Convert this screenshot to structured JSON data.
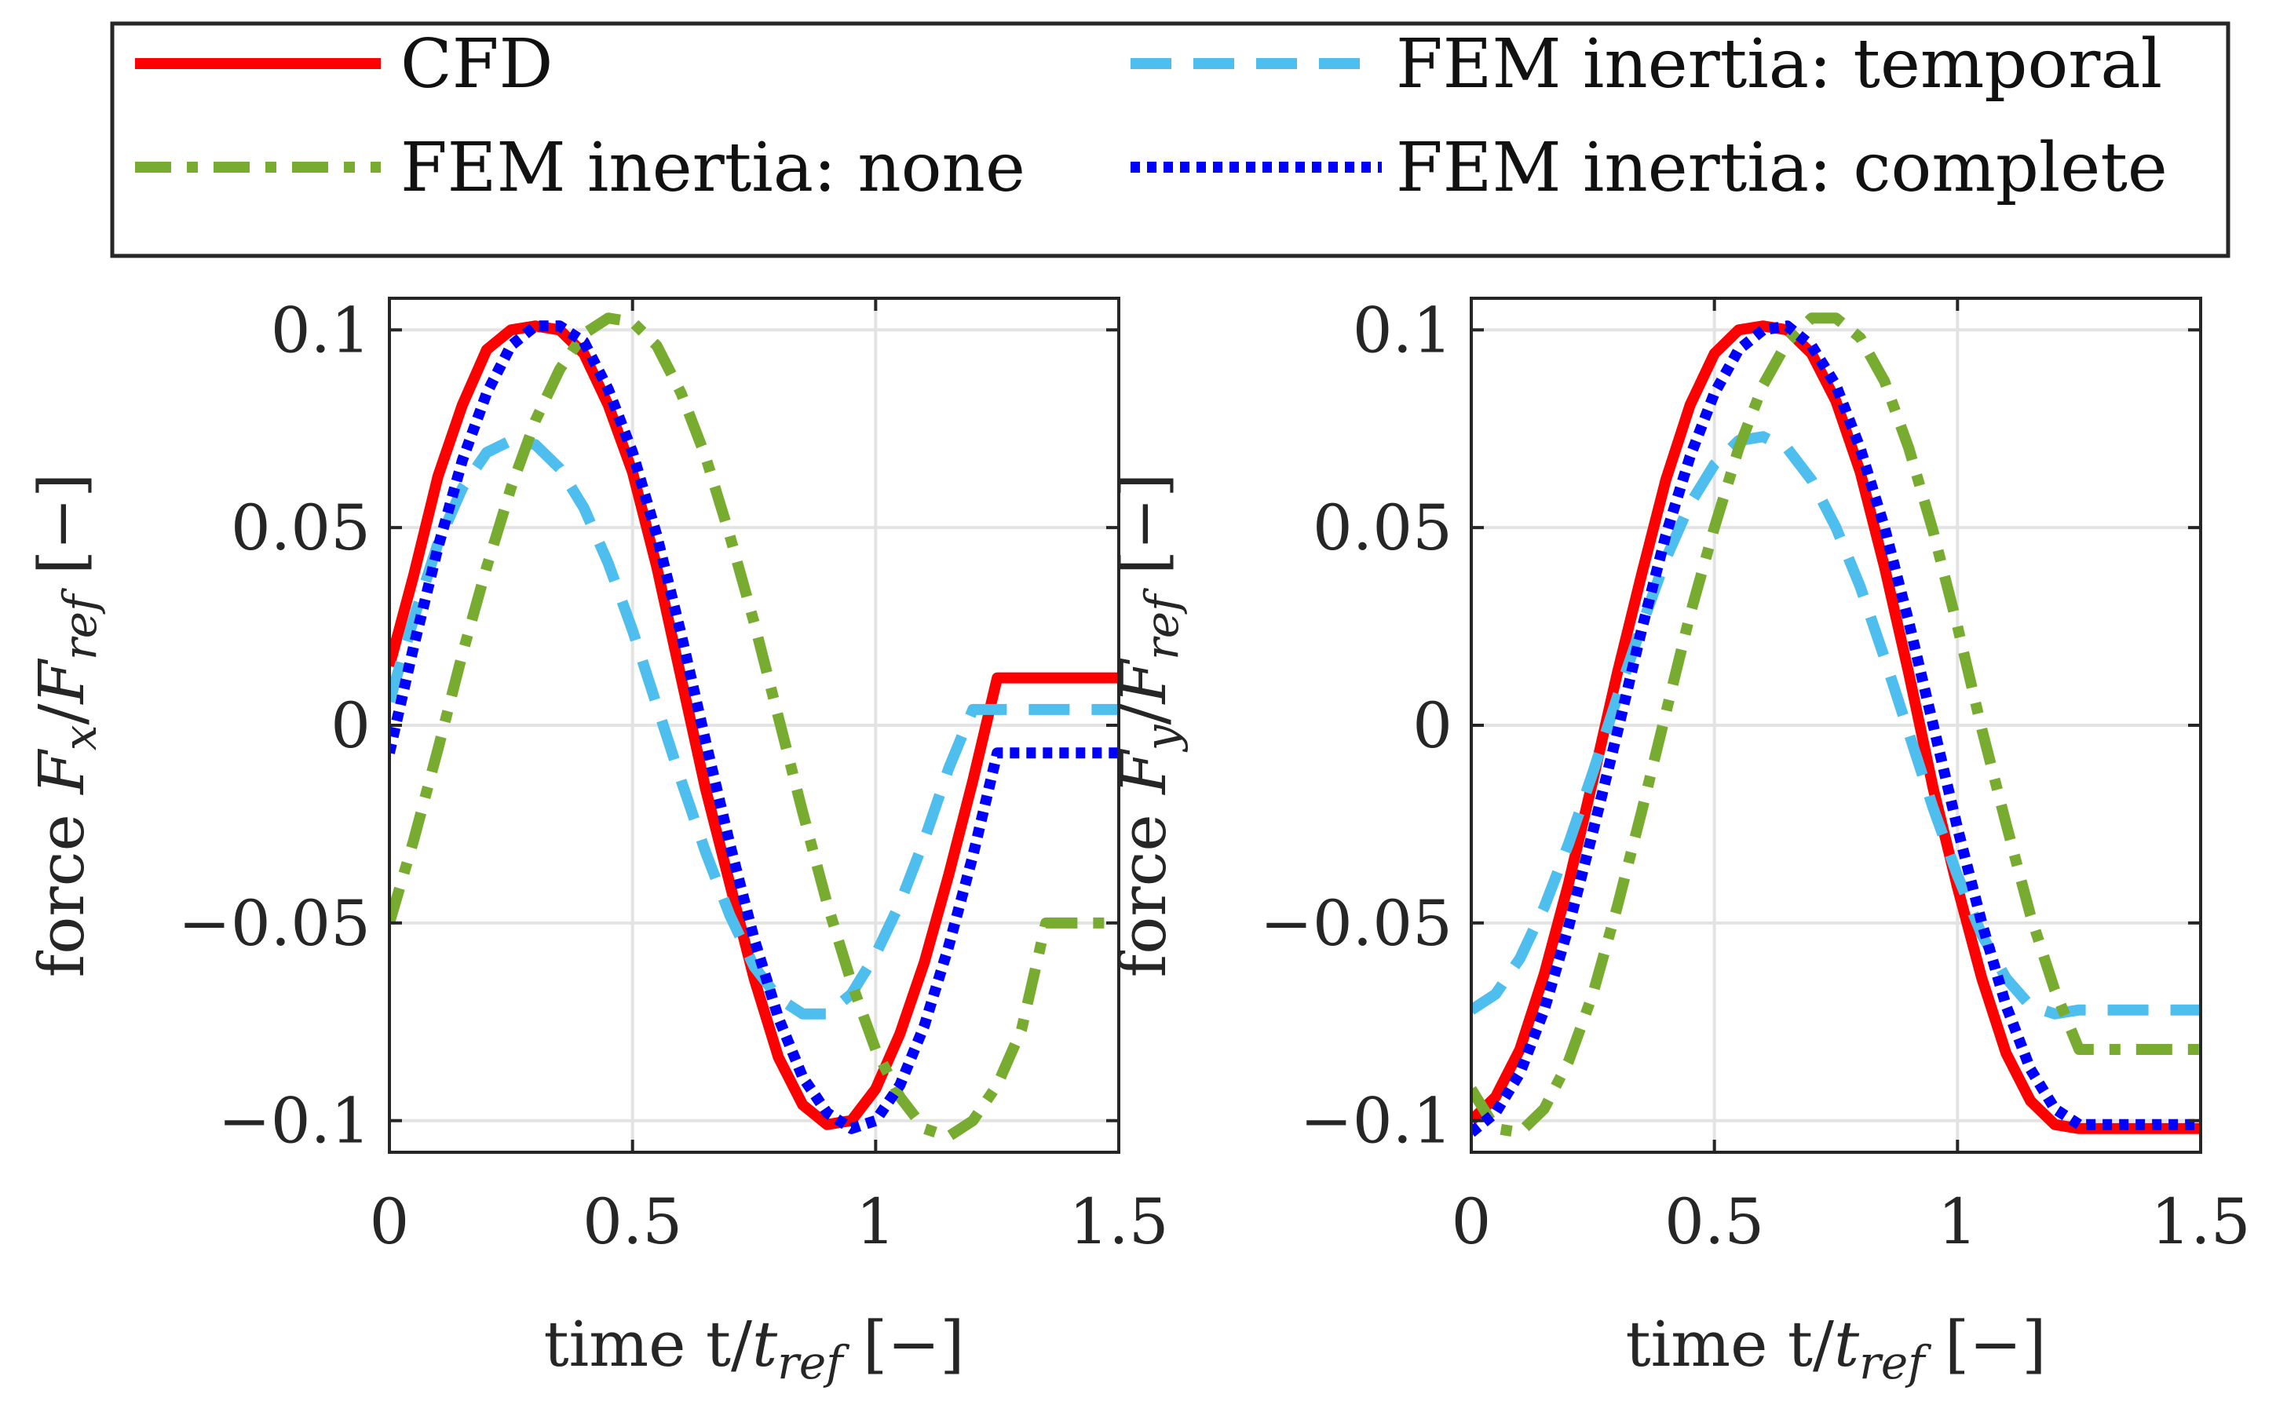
{
  "colors": {
    "CFD": "#ff0000",
    "FEM inertia: none": "#77ac30",
    "FEM inertia: temporal": "#4dbeee",
    "FEM inertia: complete": "#0000ff",
    "axis": "#262626",
    "grid": "#e3e3e3"
  },
  "legend": {
    "placement": "top, 2 columns",
    "entries": [
      {
        "label": "CFD",
        "style": "solid"
      },
      {
        "label": "FEM inertia: temporal",
        "style": "dashed"
      },
      {
        "label": "FEM inertia: none",
        "style": "dash-dot"
      },
      {
        "label": "FEM inertia: complete",
        "style": "dotted"
      }
    ]
  },
  "chart_data": [
    {
      "type": "line",
      "xlabel": "time t/t_ref [−]",
      "ylabel": "force F_x/F_ref [−]",
      "xlim": [
        0,
        1.5
      ],
      "ylim": [
        -0.108,
        0.108
      ],
      "xticks": [
        0,
        0.5,
        1,
        1.5
      ],
      "xtick_labels": [
        "0",
        "0.5",
        "1",
        "1.5"
      ],
      "yticks": [
        -0.1,
        -0.05,
        0,
        0.05,
        0.1
      ],
      "ytick_labels": [
        "−0.1",
        "−0.05",
        "0",
        "0.05",
        "0.1"
      ],
      "grid": true,
      "series": [
        {
          "name": "CFD",
          "style": "solid",
          "x": [
            0,
            0.05,
            0.1,
            0.15,
            0.2,
            0.25,
            0.3,
            0.35,
            0.4,
            0.45,
            0.5,
            0.55,
            0.6,
            0.65,
            0.7,
            0.75,
            0.8,
            0.85,
            0.9,
            0.95,
            1.0,
            1.05,
            1.1,
            1.15,
            1.2,
            1.25,
            1.3,
            1.35,
            1.4,
            1.45,
            1.5
          ],
          "y": [
            0.015,
            0.038,
            0.063,
            0.081,
            0.095,
            0.1,
            0.101,
            0.1,
            0.094,
            0.081,
            0.064,
            0.04,
            0.012,
            -0.016,
            -0.04,
            -0.064,
            -0.084,
            -0.096,
            -0.101,
            -0.1,
            -0.092,
            -0.078,
            -0.06,
            -0.038,
            -0.014,
            0.012,
            0.012,
            0.012,
            0.012,
            0.012,
            0.012
          ]
        },
        {
          "name": "FEM inertia: temporal",
          "style": "dashed",
          "x": [
            0,
            0.05,
            0.1,
            0.15,
            0.2,
            0.25,
            0.3,
            0.35,
            0.4,
            0.45,
            0.5,
            0.55,
            0.6,
            0.65,
            0.7,
            0.75,
            0.8,
            0.85,
            0.9,
            0.95,
            1.0,
            1.05,
            1.1,
            1.15,
            1.2,
            1.25,
            1.3,
            1.35,
            1.4,
            1.45,
            1.5
          ],
          "y": [
            0.006,
            0.027,
            0.046,
            0.06,
            0.069,
            0.072,
            0.071,
            0.065,
            0.055,
            0.041,
            0.024,
            0.005,
            -0.014,
            -0.032,
            -0.048,
            -0.061,
            -0.069,
            -0.073,
            -0.073,
            -0.068,
            -0.058,
            -0.045,
            -0.029,
            -0.011,
            0.004,
            0.004,
            0.004,
            0.004,
            0.004,
            0.004,
            0.004
          ]
        },
        {
          "name": "FEM inertia: none",
          "style": "dash-dot",
          "x": [
            0,
            0.05,
            0.1,
            0.15,
            0.2,
            0.25,
            0.3,
            0.35,
            0.4,
            0.45,
            0.5,
            0.55,
            0.6,
            0.65,
            0.7,
            0.75,
            0.8,
            0.85,
            0.9,
            0.95,
            1.0,
            1.05,
            1.1,
            1.15,
            1.2,
            1.25,
            1.3,
            1.35,
            1.4,
            1.45,
            1.5
          ],
          "y": [
            -0.05,
            -0.029,
            -0.006,
            0.018,
            0.04,
            0.06,
            0.077,
            0.09,
            0.099,
            0.103,
            0.102,
            0.096,
            0.084,
            0.068,
            0.048,
            0.026,
            0.002,
            -0.022,
            -0.045,
            -0.065,
            -0.082,
            -0.094,
            -0.102,
            -0.104,
            -0.1,
            -0.091,
            -0.077,
            -0.05,
            -0.05,
            -0.05,
            -0.05
          ]
        },
        {
          "name": "FEM inertia: complete",
          "style": "dotted",
          "x": [
            0,
            0.05,
            0.1,
            0.15,
            0.2,
            0.25,
            0.3,
            0.35,
            0.4,
            0.45,
            0.5,
            0.55,
            0.6,
            0.65,
            0.7,
            0.75,
            0.8,
            0.85,
            0.9,
            0.95,
            1.0,
            1.05,
            1.1,
            1.15,
            1.2,
            1.25,
            1.3,
            1.35,
            1.4,
            1.45,
            1.5
          ],
          "y": [
            -0.007,
            0.02,
            0.045,
            0.067,
            0.084,
            0.096,
            0.101,
            0.101,
            0.097,
            0.085,
            0.069,
            0.048,
            0.023,
            -0.004,
            -0.03,
            -0.054,
            -0.074,
            -0.089,
            -0.098,
            -0.102,
            -0.1,
            -0.091,
            -0.076,
            -0.056,
            -0.033,
            -0.007,
            -0.007,
            -0.007,
            -0.007,
            -0.007,
            -0.007
          ]
        }
      ]
    },
    {
      "type": "line",
      "xlabel": "time t/t_ref [−]",
      "ylabel": "force F_y/F_ref [−]",
      "xlim": [
        0,
        1.5
      ],
      "ylim": [
        -0.108,
        0.108
      ],
      "xticks": [
        0,
        0.5,
        1,
        1.5
      ],
      "xtick_labels": [
        "0",
        "0.5",
        "1",
        "1.5"
      ],
      "yticks": [
        -0.1,
        -0.05,
        0,
        0.05,
        0.1
      ],
      "ytick_labels": [
        "−0.1",
        "−0.05",
        "0",
        "0.05",
        "0.1"
      ],
      "grid": true,
      "series": [
        {
          "name": "CFD",
          "style": "solid",
          "x": [
            0,
            0.05,
            0.1,
            0.15,
            0.2,
            0.25,
            0.3,
            0.35,
            0.4,
            0.45,
            0.5,
            0.55,
            0.6,
            0.65,
            0.7,
            0.75,
            0.8,
            0.85,
            0.9,
            0.95,
            1.0,
            1.05,
            1.1,
            1.15,
            1.2,
            1.25,
            1.3,
            1.35,
            1.4,
            1.45,
            1.5
          ],
          "y": [
            -0.1,
            -0.094,
            -0.082,
            -0.063,
            -0.04,
            -0.014,
            0.013,
            0.038,
            0.062,
            0.081,
            0.094,
            0.1,
            0.101,
            0.1,
            0.094,
            0.082,
            0.064,
            0.04,
            0.013,
            -0.016,
            -0.041,
            -0.064,
            -0.083,
            -0.095,
            -0.101,
            -0.102,
            -0.102,
            -0.102,
            -0.102,
            -0.102,
            -0.102
          ]
        },
        {
          "name": "FEM inertia: temporal",
          "style": "dashed",
          "x": [
            0,
            0.05,
            0.1,
            0.15,
            0.2,
            0.25,
            0.3,
            0.35,
            0.4,
            0.45,
            0.5,
            0.55,
            0.6,
            0.65,
            0.7,
            0.75,
            0.8,
            0.85,
            0.9,
            0.95,
            1.0,
            1.05,
            1.1,
            1.15,
            1.2,
            1.25,
            1.3,
            1.35,
            1.4,
            1.45,
            1.5
          ],
          "y": [
            -0.072,
            -0.068,
            -0.059,
            -0.046,
            -0.03,
            -0.012,
            0.007,
            0.025,
            0.042,
            0.056,
            0.066,
            0.072,
            0.073,
            0.07,
            0.062,
            0.05,
            0.035,
            0.017,
            -0.002,
            -0.021,
            -0.038,
            -0.053,
            -0.064,
            -0.071,
            -0.073,
            -0.072,
            -0.072,
            -0.072,
            -0.072,
            -0.072,
            -0.072
          ]
        },
        {
          "name": "FEM inertia: none",
          "style": "dash-dot",
          "x": [
            0,
            0.05,
            0.1,
            0.15,
            0.2,
            0.25,
            0.3,
            0.35,
            0.4,
            0.45,
            0.5,
            0.55,
            0.6,
            0.65,
            0.7,
            0.75,
            0.8,
            0.85,
            0.9,
            0.95,
            1.0,
            1.05,
            1.1,
            1.15,
            1.2,
            1.25,
            1.3,
            1.35,
            1.4,
            1.45,
            1.5
          ],
          "y": [
            -0.092,
            -0.102,
            -0.103,
            -0.097,
            -0.085,
            -0.068,
            -0.046,
            -0.022,
            0.003,
            0.028,
            0.05,
            0.07,
            0.086,
            0.097,
            0.103,
            0.103,
            0.098,
            0.087,
            0.07,
            0.049,
            0.025,
            -0.001,
            -0.025,
            -0.048,
            -0.067,
            -0.082,
            -0.082,
            -0.082,
            -0.082,
            -0.082,
            -0.082
          ]
        },
        {
          "name": "FEM inertia: complete",
          "style": "dotted",
          "x": [
            0,
            0.05,
            0.1,
            0.15,
            0.2,
            0.25,
            0.3,
            0.35,
            0.4,
            0.45,
            0.5,
            0.55,
            0.6,
            0.65,
            0.7,
            0.75,
            0.8,
            0.85,
            0.9,
            0.95,
            1.0,
            1.05,
            1.1,
            1.15,
            1.2,
            1.25,
            1.3,
            1.35,
            1.4,
            1.45,
            1.5
          ],
          "y": [
            -0.103,
            -0.098,
            -0.088,
            -0.072,
            -0.051,
            -0.027,
            -0.002,
            0.024,
            0.048,
            0.068,
            0.084,
            0.095,
            0.1,
            0.101,
            0.096,
            0.086,
            0.07,
            0.05,
            0.026,
            0.0,
            -0.026,
            -0.05,
            -0.071,
            -0.087,
            -0.097,
            -0.101,
            -0.101,
            -0.101,
            -0.101,
            -0.101,
            -0.101
          ]
        }
      ]
    }
  ]
}
